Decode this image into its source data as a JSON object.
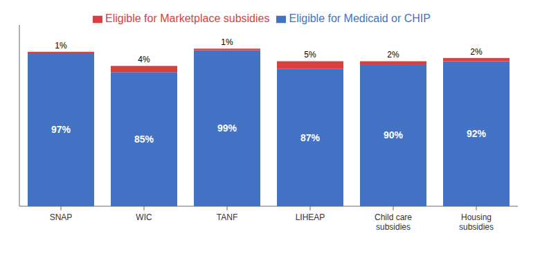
{
  "chart_data": {
    "type": "bar",
    "stacked": true,
    "categories": [
      "SNAP",
      "WIC",
      "TANF",
      "LIHEAP",
      "Child care\nsubsidies",
      "Housing\nsubsidies"
    ],
    "series": [
      {
        "name": "Eligible for Medicaid or CHIP",
        "color": "#4472C4",
        "values": [
          97,
          85,
          99,
          87,
          90,
          92
        ],
        "value_labels": [
          "97%",
          "85%",
          "99%",
          "87%",
          "90%",
          "92%"
        ]
      },
      {
        "name": "Eligible for Marketplace subsidies",
        "color": "#d94040",
        "values": [
          1,
          4,
          1,
          5,
          2,
          2
        ],
        "value_labels": [
          "1%",
          "4%",
          "1%",
          "5%",
          "2%",
          "2%"
        ]
      }
    ],
    "ylim": [
      0,
      115
    ],
    "grid": false,
    "legend": "top",
    "data_labels": true,
    "tick_labels": "x"
  }
}
